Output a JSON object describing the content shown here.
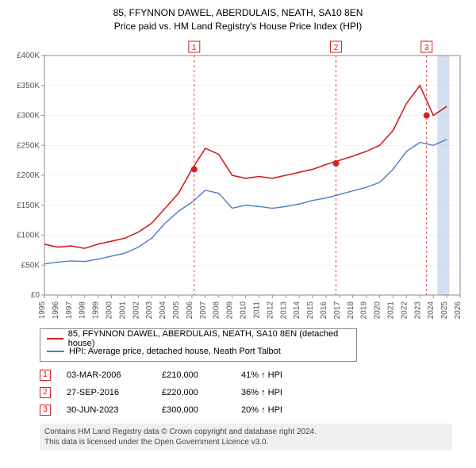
{
  "title_line1": "85, FFYNNON DAWEL, ABERDULAIS, NEATH, SA10 8EN",
  "title_line2": "Price paid vs. HM Land Registry's House Price Index (HPI)",
  "chart": {
    "type": "line",
    "background_color": "#ffffff",
    "title_fontsize": 12,
    "label_fontsize": 10,
    "x_years": [
      1995,
      1996,
      1997,
      1998,
      1999,
      2000,
      2001,
      2002,
      2003,
      2004,
      2005,
      2006,
      2007,
      2008,
      2009,
      2010,
      2011,
      2012,
      2013,
      2014,
      2015,
      2016,
      2017,
      2018,
      2019,
      2020,
      2021,
      2022,
      2023,
      2024,
      2025,
      2026
    ],
    "ylim": [
      0,
      400000
    ],
    "ytick_step": 50000,
    "ytick_labels": [
      "£0",
      "£50K",
      "£100K",
      "£150K",
      "£200K",
      "£250K",
      "£300K",
      "£350K",
      "£400K"
    ],
    "series": [
      {
        "name": "property",
        "color": "#d21f1f",
        "width": 1.6,
        "points_y": [
          85000,
          80000,
          82000,
          78000,
          85000,
          90000,
          95000,
          105000,
          120000,
          145000,
          170000,
          210000,
          245000,
          235000,
          200000,
          195000,
          198000,
          195000,
          200000,
          205000,
          210000,
          218000,
          225000,
          232000,
          240000,
          250000,
          275000,
          320000,
          350000,
          300000,
          315000
        ]
      },
      {
        "name": "hpi",
        "color": "#4a7bc9",
        "width": 1.4,
        "points_y": [
          52000,
          55000,
          57000,
          56000,
          60000,
          65000,
          70000,
          80000,
          95000,
          120000,
          140000,
          155000,
          175000,
          170000,
          145000,
          150000,
          148000,
          145000,
          148000,
          152000,
          158000,
          162000,
          168000,
          174000,
          180000,
          188000,
          210000,
          240000,
          255000,
          250000,
          260000
        ]
      }
    ],
    "events": [
      {
        "num": "1",
        "year_frac": 2006.17,
        "date": "03-MAR-2006",
        "price": "£210,000",
        "delta": "41% ↑ HPI",
        "y_val": 210000
      },
      {
        "num": "2",
        "year_frac": 2016.74,
        "date": "27-SEP-2016",
        "price": "£220,000",
        "delta": "36% ↑ HPI",
        "y_val": 220000
      },
      {
        "num": "3",
        "year_frac": 2023.5,
        "date": "30-JUN-2023",
        "price": "£300,000",
        "delta": "20% ↑ HPI",
        "y_val": 300000
      }
    ],
    "event_color": "#d21f1f",
    "recent_band": {
      "start": 2024.3,
      "end": 2025.2,
      "color": "#b8c9e8",
      "opacity": 0.6
    }
  },
  "legend": [
    {
      "color": "#d21f1f",
      "label": "85, FFYNNON DAWEL, ABERDULAIS, NEATH, SA10 8EN (detached house)"
    },
    {
      "color": "#4a7bc9",
      "label": "HPI: Average price, detached house, Neath Port Talbot"
    }
  ],
  "footer_line1": "Contains HM Land Registry data © Crown copyright and database right 2024.",
  "footer_line2": "This data is licensed under the Open Government Licence v3.0."
}
